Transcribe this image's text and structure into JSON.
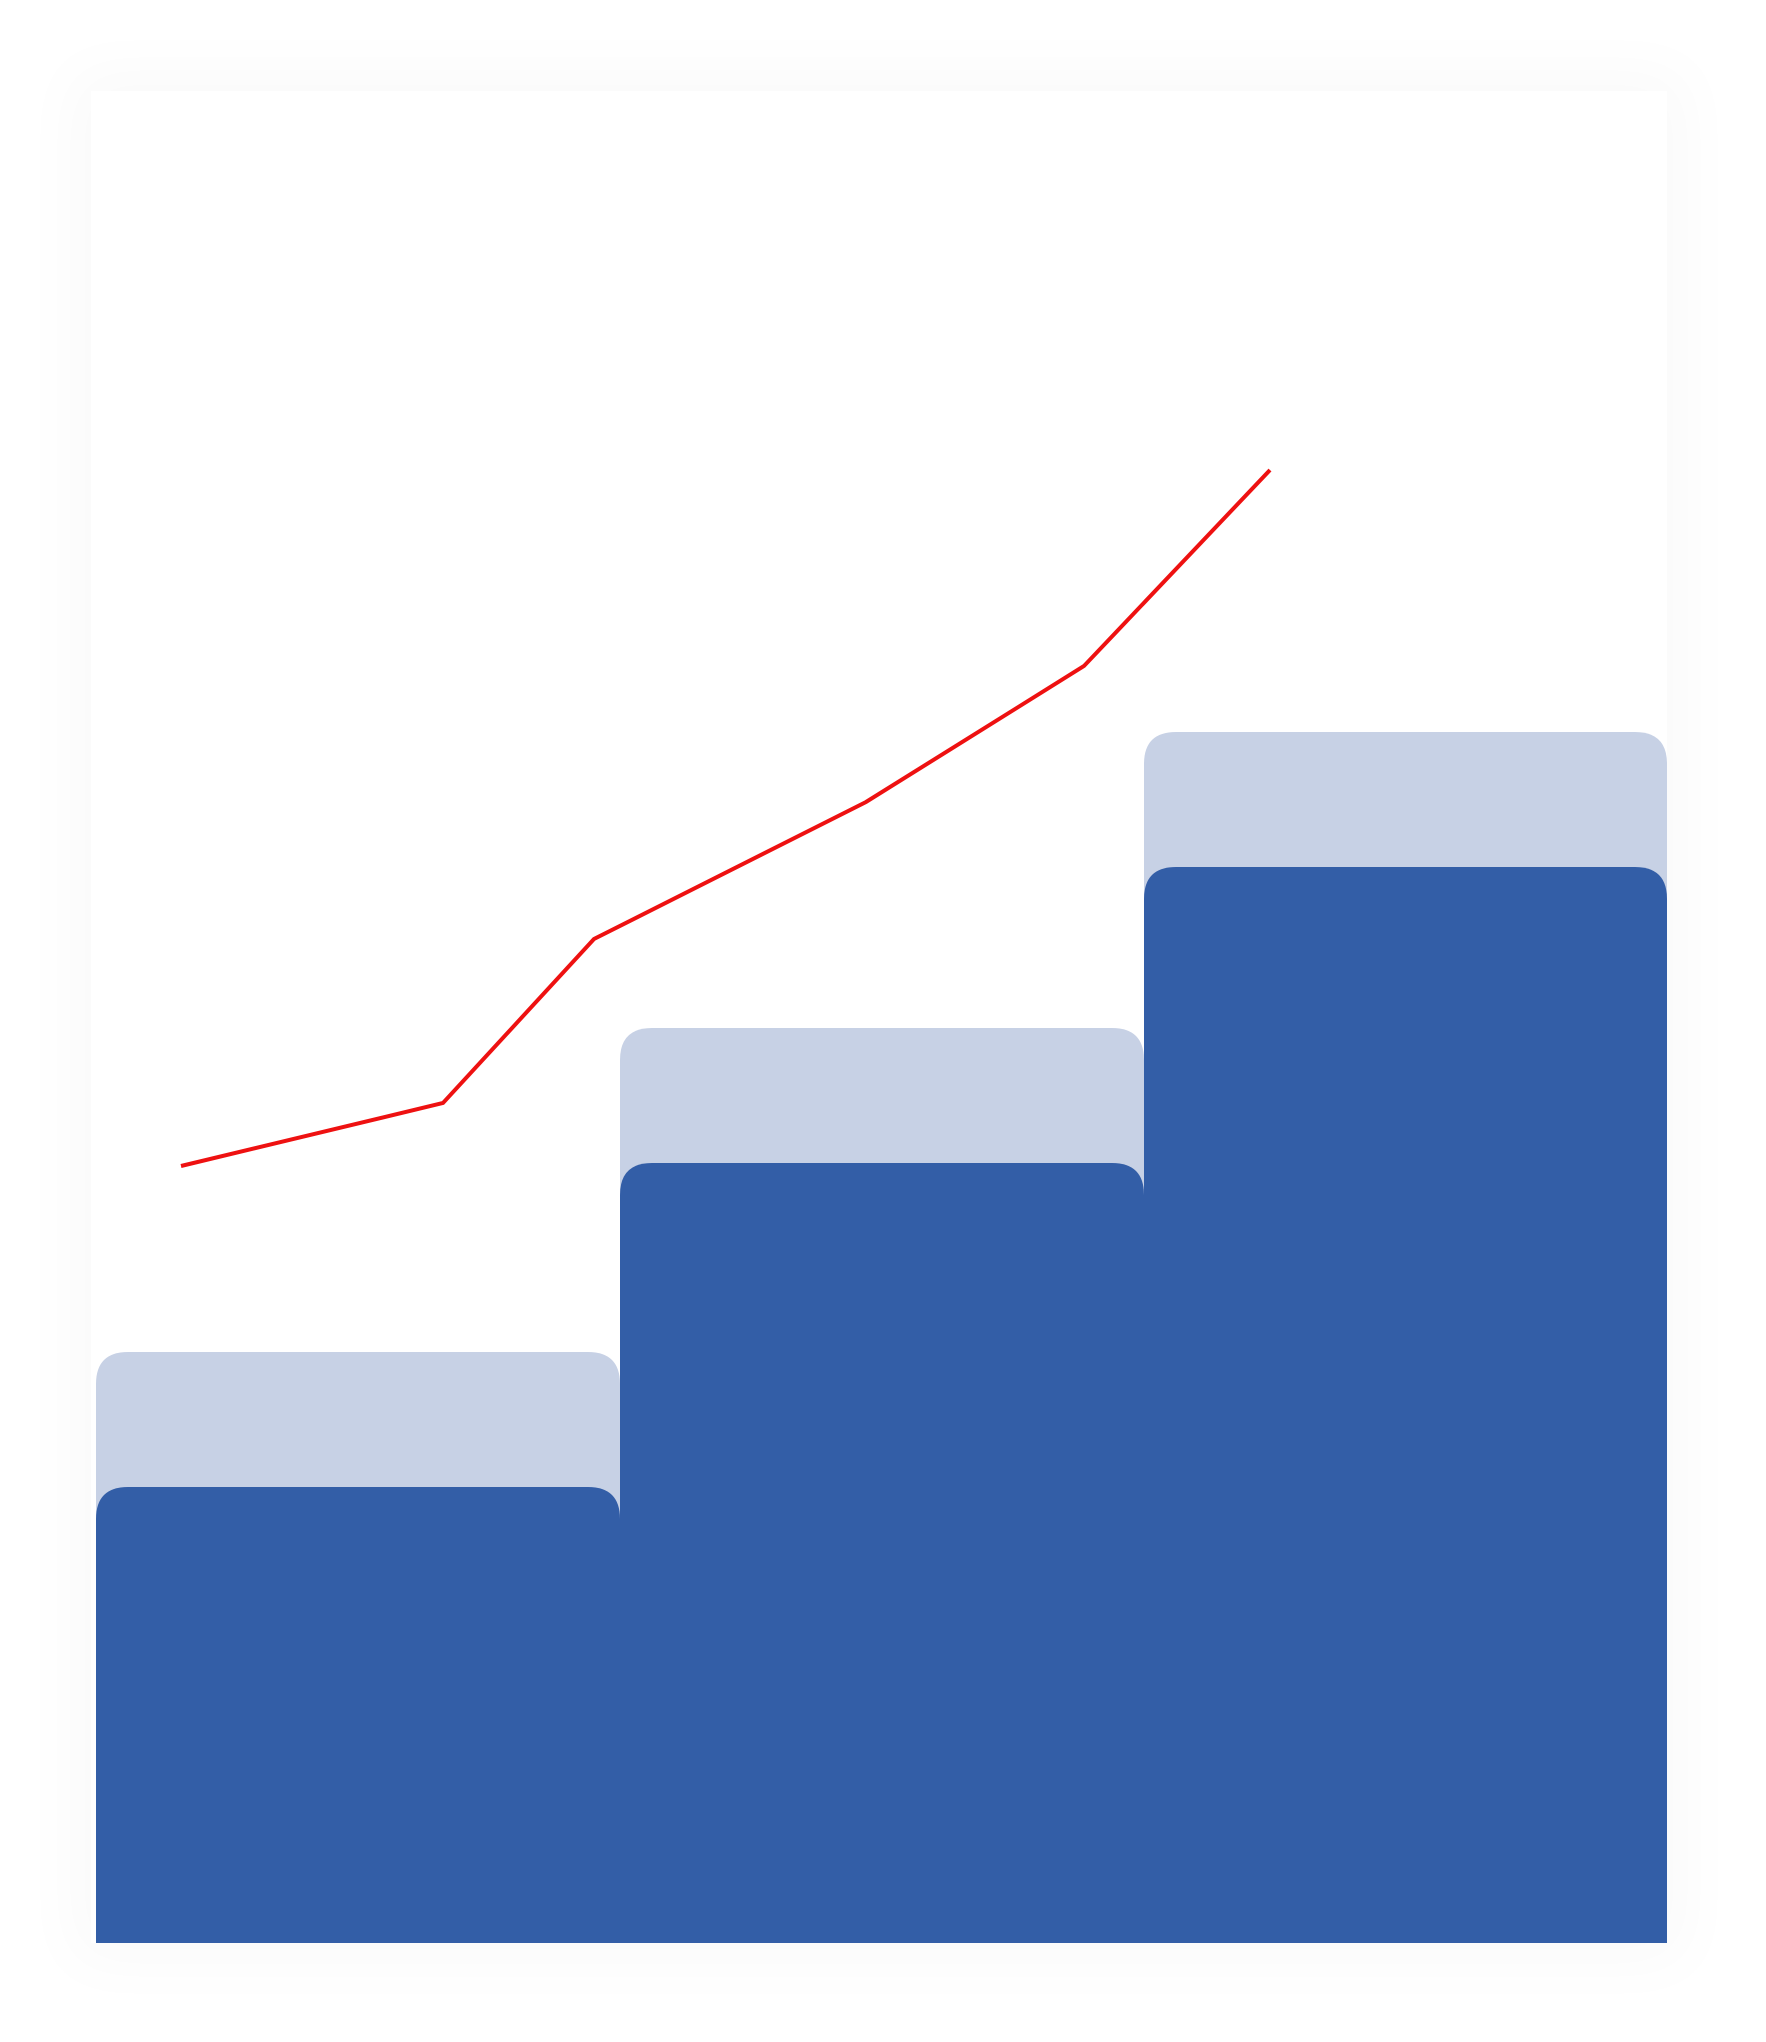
{
  "illustration": {
    "colors": {
      "bar": "#335ea7",
      "bar_shadow": "#c7d1e5",
      "trend_line": "#ee1111",
      "background": "#ffffff"
    },
    "icons": [
      "bar-chart-icon",
      "trend-line-icon"
    ]
  }
}
